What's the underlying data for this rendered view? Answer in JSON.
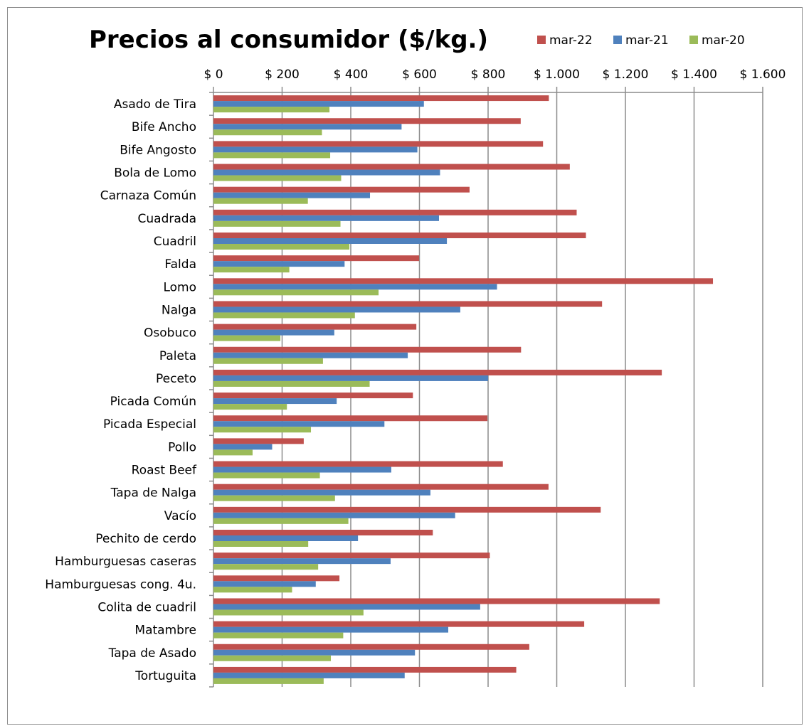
{
  "chart_data": {
    "type": "bar",
    "orientation": "horizontal",
    "title": "Precios al consumidor ($/kg.)",
    "xlim": [
      0,
      1600
    ],
    "x_ticks": [
      0,
      200,
      400,
      600,
      800,
      1000,
      1200,
      1400,
      1600
    ],
    "x_tick_labels": [
      "$ 0",
      "$ 200",
      "$ 400",
      "$ 600",
      "$ 800",
      "$ 1.000",
      "$ 1.200",
      "$ 1.400",
      "$ 1.600"
    ],
    "x_axis_position": "top",
    "grid": true,
    "legend_position": "top-right",
    "categories": [
      "Asado de Tira",
      "Bife Ancho",
      "Bife Angosto",
      "Bola de Lomo",
      "Carnaza Común",
      "Cuadrada",
      "Cuadril",
      "Falda",
      "Lomo",
      "Nalga",
      "Osobuco",
      "Paleta",
      "Peceto",
      "Picada Común",
      "Picada Especial",
      "Pollo",
      "Roast Beef",
      "Tapa de Nalga",
      "Vacío",
      "Pechito de cerdo",
      "Hamburguesas caseras",
      "Hamburguesas cong. 4u.",
      "Colita de cuadril",
      "Matambre",
      "Tapa de Asado",
      "Tortuguita"
    ],
    "series": [
      {
        "name": "mar-22",
        "color": "#c0504d",
        "values": [
          977,
          895,
          960,
          1038,
          746,
          1058,
          1085,
          599,
          1455,
          1132,
          591,
          896,
          1306,
          581,
          798,
          263,
          843,
          976,
          1128,
          639,
          805,
          367,
          1300,
          1080,
          920,
          882
        ]
      },
      {
        "name": "mar-21",
        "color": "#4f81bd",
        "values": [
          613,
          548,
          594,
          660,
          456,
          657,
          680,
          382,
          826,
          719,
          352,
          566,
          800,
          359,
          498,
          171,
          518,
          632,
          704,
          421,
          516,
          298,
          777,
          684,
          587,
          557
        ]
      },
      {
        "name": "mar-20",
        "color": "#9bbb59",
        "values": [
          338,
          316,
          340,
          372,
          275,
          370,
          396,
          221,
          481,
          412,
          195,
          319,
          455,
          214,
          284,
          114,
          310,
          354,
          393,
          276,
          305,
          229,
          437,
          378,
          342,
          321
        ]
      }
    ]
  }
}
